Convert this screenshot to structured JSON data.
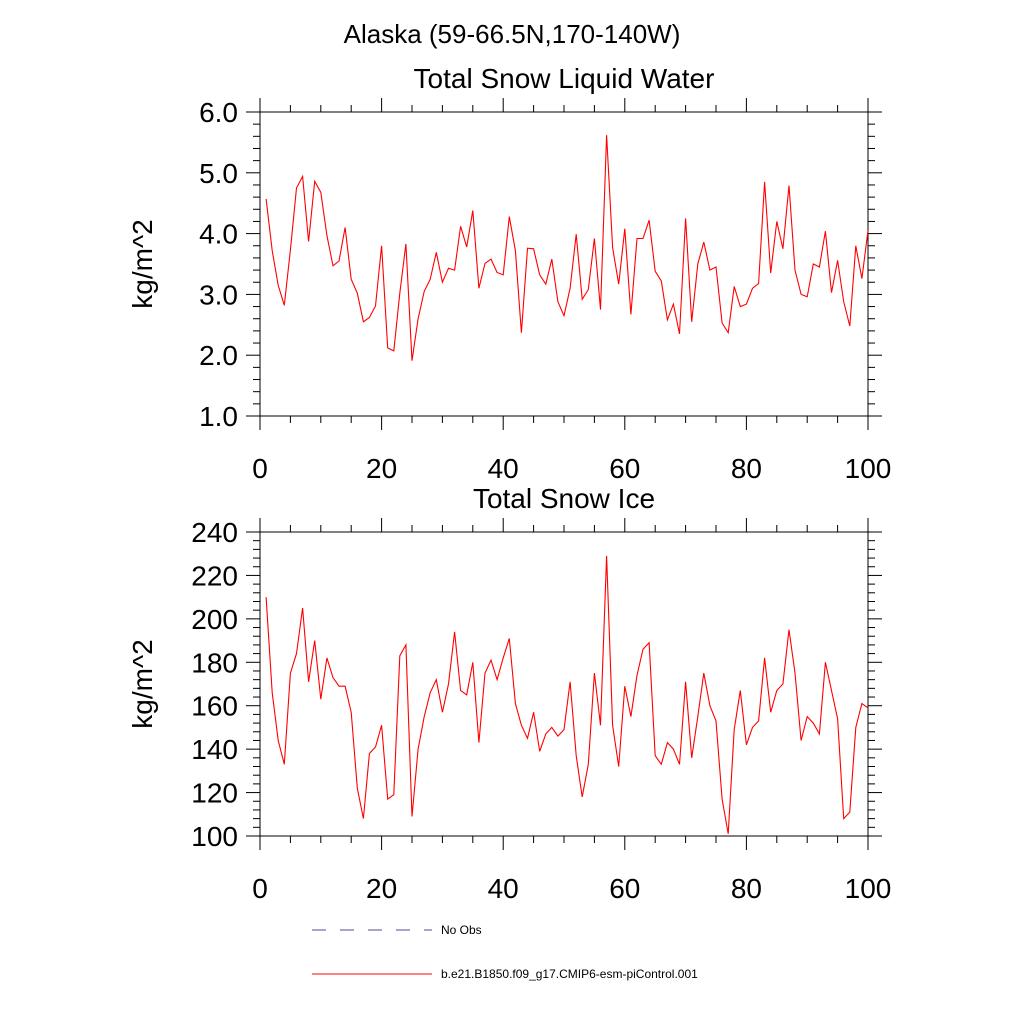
{
  "figure": {
    "title": "Alaska (59-66.5N,170-140W)"
  },
  "legend": {
    "items": [
      {
        "label": "No Obs",
        "style": "dashed",
        "color": "#4a4a9a"
      },
      {
        "label": "b.e21.B1850.f09_g17.CMIP6-esm-piControl.001",
        "style": "solid",
        "color": "#ff0000"
      }
    ]
  },
  "chart_data": [
    {
      "type": "line",
      "title": "Total Snow Liquid Water",
      "xlabel": "",
      "ylabel": "kg/m^2",
      "xlim": [
        0,
        100
      ],
      "ylim": [
        1.0,
        6.0
      ],
      "xticks": [
        "0",
        "20",
        "40",
        "60",
        "80",
        "100"
      ],
      "yticks": [
        "1.0",
        "2.0",
        "3.0",
        "4.0",
        "5.0",
        "6.0"
      ],
      "grid": false,
      "series": [
        {
          "color": "#ff0000",
          "x": [
            1,
            2,
            3,
            4,
            5,
            6,
            7,
            8,
            9,
            10,
            11,
            12,
            13,
            14,
            15,
            16,
            17,
            18,
            19,
            20,
            21,
            22,
            23,
            24,
            25,
            26,
            27,
            28,
            29,
            30,
            31,
            32,
            33,
            34,
            35,
            36,
            37,
            38,
            39,
            40,
            41,
            42,
            43,
            44,
            45,
            46,
            47,
            48,
            49,
            50,
            51,
            52,
            53,
            54,
            55,
            56,
            57,
            58,
            59,
            60,
            61,
            62,
            63,
            64,
            65,
            66,
            67,
            68,
            69,
            70,
            71,
            72,
            73,
            74,
            75,
            76,
            77,
            78,
            79,
            80,
            81,
            82,
            83,
            84,
            85,
            86,
            87,
            88,
            89,
            90,
            91,
            92,
            93,
            94,
            95,
            96,
            97,
            98,
            99,
            100
          ],
          "values": [
            4.57,
            3.72,
            3.15,
            2.82,
            3.73,
            4.75,
            4.94,
            3.87,
            4.86,
            4.68,
            3.97,
            3.47,
            3.55,
            4.1,
            3.25,
            3.02,
            2.55,
            2.62,
            2.81,
            3.8,
            2.12,
            2.07,
            3.02,
            3.83,
            1.91,
            2.6,
            3.05,
            3.25,
            3.69,
            3.2,
            3.43,
            3.4,
            4.12,
            3.78,
            4.38,
            3.1,
            3.51,
            3.58,
            3.36,
            3.32,
            4.28,
            3.72,
            2.37,
            3.76,
            3.75,
            3.32,
            3.17,
            3.58,
            2.88,
            2.65,
            3.1,
            3.99,
            2.92,
            3.08,
            3.92,
            2.75,
            5.62,
            3.77,
            3.17,
            4.08,
            2.67,
            3.92,
            3.92,
            4.22,
            3.38,
            3.22,
            2.58,
            2.84,
            2.35,
            4.25,
            2.55,
            3.5,
            3.86,
            3.4,
            3.45,
            2.53,
            2.37,
            3.13,
            2.8,
            2.84,
            3.1,
            3.18,
            4.85,
            3.35,
            4.2,
            3.75,
            4.79,
            3.4,
            3.0,
            2.96,
            3.5,
            3.45,
            4.04,
            3.03,
            3.56,
            2.88,
            2.48,
            3.8,
            3.26,
            4.05
          ]
        }
      ]
    },
    {
      "type": "line",
      "title": "Total Snow Ice",
      "xlabel": "",
      "ylabel": "kg/m^2",
      "xlim": [
        0,
        100
      ],
      "ylim": [
        100,
        240
      ],
      "xticks": [
        "0",
        "20",
        "40",
        "60",
        "80",
        "100"
      ],
      "yticks": [
        "100",
        "120",
        "140",
        "160",
        "180",
        "200",
        "220",
        "240"
      ],
      "grid": false,
      "series": [
        {
          "color": "#ff0000",
          "x": [
            1,
            2,
            3,
            4,
            5,
            6,
            7,
            8,
            9,
            10,
            11,
            12,
            13,
            14,
            15,
            16,
            17,
            18,
            19,
            20,
            21,
            22,
            23,
            24,
            25,
            26,
            27,
            28,
            29,
            30,
            31,
            32,
            33,
            34,
            35,
            36,
            37,
            38,
            39,
            40,
            41,
            42,
            43,
            44,
            45,
            46,
            47,
            48,
            49,
            50,
            51,
            52,
            53,
            54,
            55,
            56,
            57,
            58,
            59,
            60,
            61,
            62,
            63,
            64,
            65,
            66,
            67,
            68,
            69,
            70,
            71,
            72,
            73,
            74,
            75,
            76,
            77,
            78,
            79,
            80,
            81,
            82,
            83,
            84,
            85,
            86,
            87,
            88,
            89,
            90,
            91,
            92,
            93,
            94,
            95,
            96,
            97,
            98,
            99,
            100
          ],
          "values": [
            210,
            166,
            144,
            133,
            175,
            184,
            205,
            171,
            190,
            163,
            182,
            173,
            169,
            169,
            157,
            122,
            108,
            138,
            141,
            151,
            117,
            119,
            183,
            188,
            109,
            140,
            155,
            166,
            172,
            157,
            170,
            194,
            167,
            165,
            180,
            143,
            175,
            181,
            172,
            182,
            191,
            161,
            151,
            145,
            157,
            139,
            147,
            150,
            146,
            149,
            171,
            137,
            118,
            133,
            175,
            151,
            229,
            151,
            132,
            169,
            155,
            174,
            186,
            189,
            137,
            133,
            143,
            140,
            133,
            171,
            136,
            155,
            175,
            160,
            153,
            117,
            101,
            149,
            167,
            142,
            150,
            153,
            182,
            157,
            167,
            170,
            195,
            175,
            144,
            155,
            152,
            147,
            180,
            167,
            154,
            108,
            111,
            150,
            161,
            159
          ]
        }
      ]
    }
  ]
}
